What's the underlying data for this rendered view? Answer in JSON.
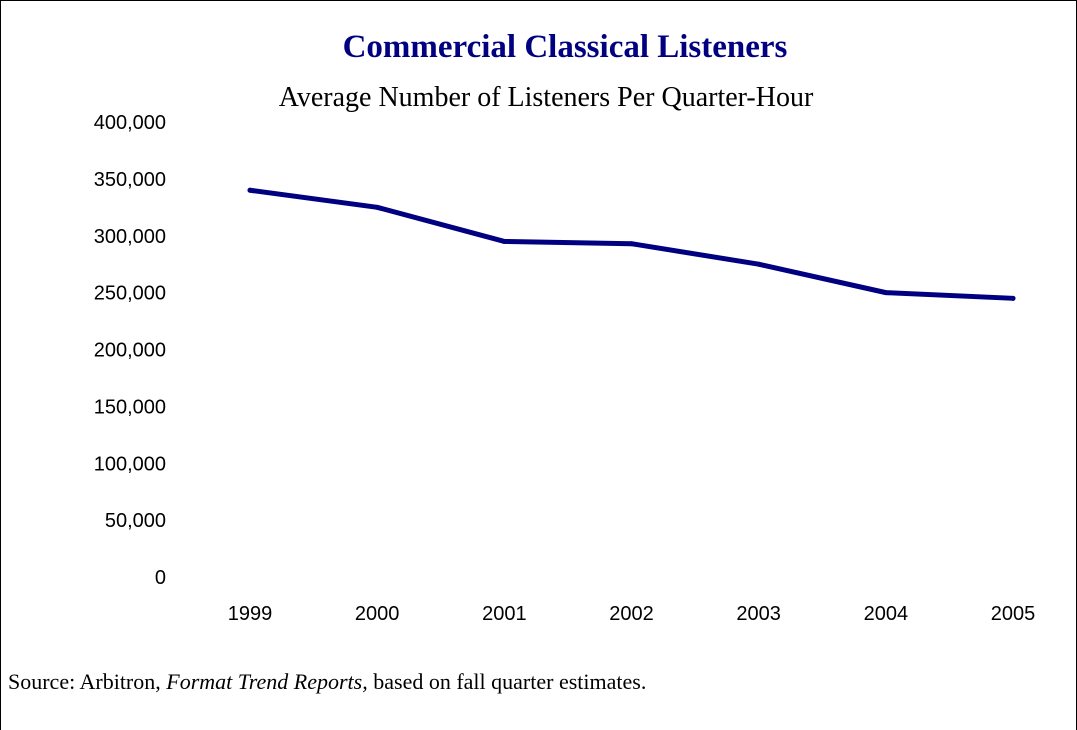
{
  "chart_data": {
    "type": "line",
    "title": "Commercial Classical Listeners",
    "subtitle": "Average Number of Listeners Per Quarter-Hour",
    "xlabel": "",
    "ylabel": "",
    "categories": [
      "1999",
      "2000",
      "2001",
      "2002",
      "2003",
      "2004",
      "2005"
    ],
    "series": [
      {
        "values": [
          340000,
          325000,
          295000,
          293000,
          275000,
          250000,
          245000
        ]
      }
    ],
    "ylim": [
      0,
      400000
    ],
    "yticks": [
      "0",
      "50,000",
      "100,000",
      "150,000",
      "200,000",
      "250,000",
      "300,000",
      "350,000",
      "400,000"
    ],
    "line_color": "#000080",
    "grid": false,
    "legend": "none"
  },
  "source": {
    "prefix": "Source: Arbitron, ",
    "italic": "Format Trend Reports,",
    "suffix": " based on fall quarter estimates."
  }
}
